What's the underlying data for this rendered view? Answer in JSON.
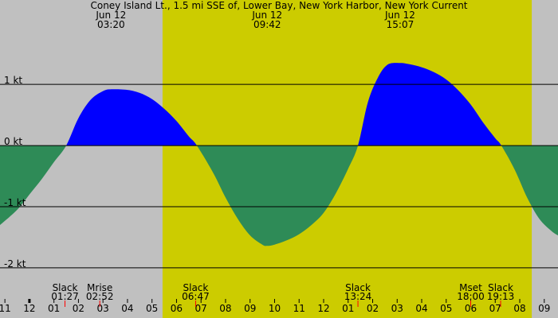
{
  "chart_data": {
    "type": "area",
    "title": "Coney Island Lt., 1.5 mi SSE of, Lower Bay, New York Harbor, New York Current",
    "xlim": [
      -1.2,
      21.56
    ],
    "ylim": [
      -2.82,
      2.38
    ],
    "yticks": [
      {
        "value": 1,
        "label": "1 kt"
      },
      {
        "value": 0,
        "label": "0 kt"
      },
      {
        "value": -1,
        "label": "-1 kt"
      },
      {
        "value": -2,
        "label": "-2 kt"
      }
    ],
    "xticks": [
      {
        "value": -1,
        "label": "11"
      },
      {
        "value": 0,
        "label": "12"
      },
      {
        "value": 1,
        "label": "01"
      },
      {
        "value": 2,
        "label": "02"
      },
      {
        "value": 3,
        "label": "03"
      },
      {
        "value": 4,
        "label": "04"
      },
      {
        "value": 5,
        "label": "05"
      },
      {
        "value": 6,
        "label": "06"
      },
      {
        "value": 7,
        "label": "07"
      },
      {
        "value": 8,
        "label": "08"
      },
      {
        "value": 9,
        "label": "09"
      },
      {
        "value": 10,
        "label": "10"
      },
      {
        "value": 11,
        "label": "11"
      },
      {
        "value": 12,
        "label": "12"
      },
      {
        "value": 13,
        "label": "01"
      },
      {
        "value": 14,
        "label": "02"
      },
      {
        "value": 15,
        "label": "03"
      },
      {
        "value": 16,
        "label": "04"
      },
      {
        "value": 17,
        "label": "05"
      },
      {
        "value": 18,
        "label": "06"
      },
      {
        "value": 19,
        "label": "07"
      },
      {
        "value": 20,
        "label": "08"
      },
      {
        "value": 21,
        "label": "09"
      }
    ],
    "daylight": [
      5.43,
      20.49
    ],
    "colors": {
      "night": "#c0c0c0",
      "day": "#cccc00",
      "flood": "#0000ff",
      "ebb": "#2e8b57"
    },
    "series": [
      {
        "name": "Current",
        "x": [
          -1.2,
          -0.5,
          0,
          0.5,
          1.0,
          1.5,
          2.0,
          2.5,
          3.0,
          3.35,
          4.0,
          4.5,
          5.0,
          5.5,
          6.0,
          6.5,
          6.83,
          7.5,
          8.0,
          8.5,
          9.0,
          9.5,
          9.7,
          10.0,
          10.5,
          11.0,
          11.5,
          12.0,
          12.5,
          13.0,
          13.4,
          13.8,
          14.2,
          14.6,
          15.1,
          15.5,
          16.0,
          16.5,
          17.0,
          17.5,
          18.0,
          18.5,
          19.0,
          19.25,
          19.8,
          20.3,
          20.8,
          21.3,
          21.56
        ],
        "values": [
          -1.3,
          -1.05,
          -0.8,
          -0.55,
          -0.27,
          0.0,
          0.45,
          0.75,
          0.89,
          0.92,
          0.91,
          0.86,
          0.76,
          0.6,
          0.4,
          0.15,
          0.0,
          -0.45,
          -0.85,
          -1.2,
          -1.47,
          -1.62,
          -1.64,
          -1.62,
          -1.55,
          -1.45,
          -1.3,
          -1.1,
          -0.78,
          -0.38,
          0.0,
          0.7,
          1.1,
          1.32,
          1.35,
          1.33,
          1.28,
          1.2,
          1.08,
          0.9,
          0.67,
          0.38,
          0.12,
          0.0,
          -0.4,
          -0.85,
          -1.2,
          -1.4,
          -1.47
        ]
      }
    ],
    "peaks": [
      {
        "date": "Jun 12",
        "time": "03:20",
        "hour": 3.33
      },
      {
        "date": "Jun 12",
        "time": "09:42",
        "hour": 9.7
      },
      {
        "date": "Jun 12",
        "time": "15:07",
        "hour": 15.12
      }
    ],
    "events": [
      {
        "label": "Slack",
        "time": "01:27",
        "hour": 1.45
      },
      {
        "label": "Mrise",
        "time": "02:52",
        "hour": 2.87
      },
      {
        "label": "Slack",
        "time": "06:47",
        "hour": 6.78
      },
      {
        "label": "Slack",
        "time": "13:24",
        "hour": 13.4
      },
      {
        "label": "Mset",
        "time": "18:00",
        "hour": 18.0
      },
      {
        "label": "Slack",
        "time": "19:13",
        "hour": 19.22
      }
    ]
  }
}
